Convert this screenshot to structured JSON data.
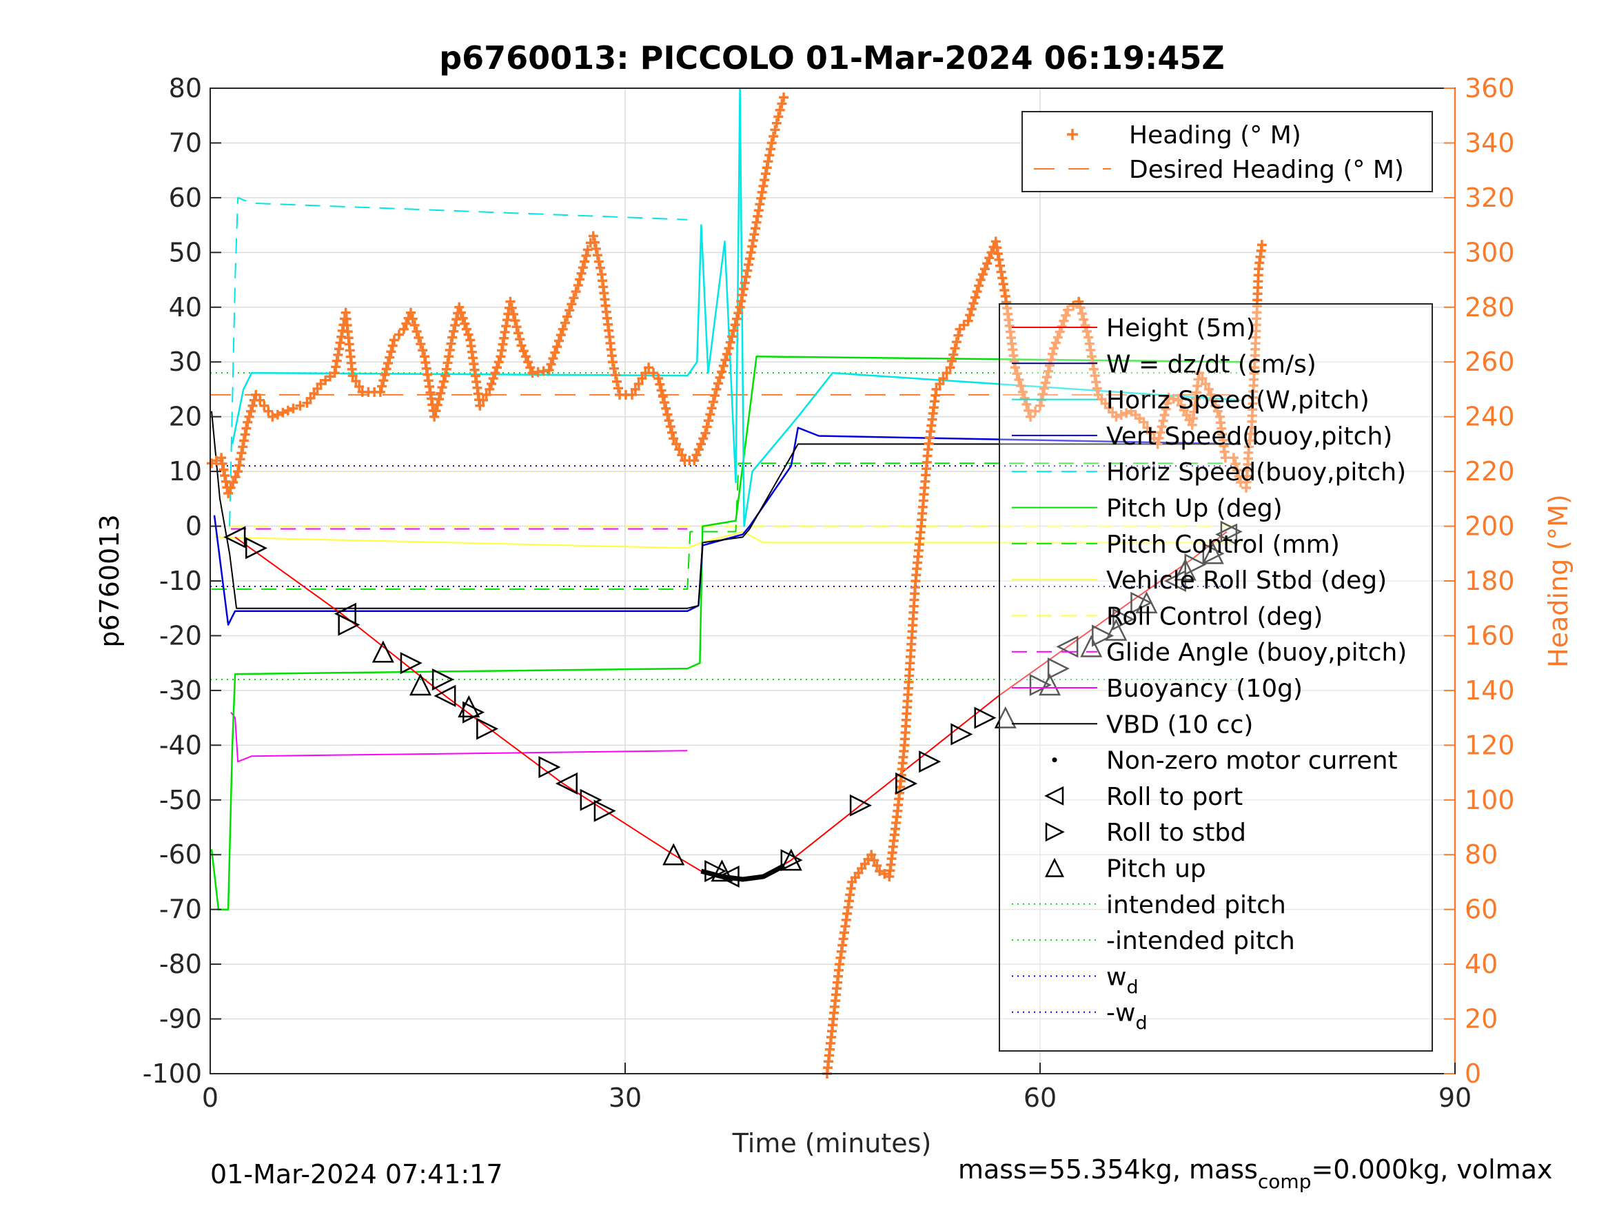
{
  "chart_data": {
    "type": "line",
    "title": "p6760013: PICCOLO 01-Mar-2024 06:19:45Z",
    "xlabel": "Time (minutes)",
    "ylabel": "p6760013",
    "y2label": "Heading (°M)",
    "xlim": [
      0,
      90
    ],
    "ylim": [
      -100,
      80
    ],
    "y2lim": [
      0,
      360
    ],
    "xticks": [
      "0",
      "30",
      "60",
      "90"
    ],
    "yticks": [
      "80",
      "70",
      "60",
      "50",
      "40",
      "30",
      "20",
      "10",
      "0",
      "-10",
      "-20",
      "-30",
      "-40",
      "-50",
      "-60",
      "-70",
      "-80",
      "-90",
      "-100"
    ],
    "y2ticks": [
      "360",
      "340",
      "320",
      "300",
      "280",
      "260",
      "240",
      "220",
      "200",
      "180",
      "160",
      "140",
      "120",
      "100",
      "80",
      "60",
      "40",
      "20",
      "0"
    ],
    "grid": true,
    "colors": {
      "heading": "#f97a2a",
      "height": "#ff0000",
      "w": "#000080",
      "horiz_speed_w": "#00e5e5",
      "vert_speed": "#0000dd",
      "pitch": "#00e000",
      "roll": "#ffff33",
      "glide": "#ff00ff",
      "buoyancy": "#ff00ff",
      "vbd": "#000000",
      "wd": "#0000ff"
    },
    "legend_heading": [
      {
        "label": "Heading (° M)",
        "style": "plus"
      },
      {
        "label": "Desired Heading (° M)",
        "style": "dash"
      }
    ],
    "legend_main": [
      {
        "label": "Height (5m)",
        "style": "line",
        "color": "#ff0000"
      },
      {
        "label": "W = dz/dt (cm/s)",
        "style": "line",
        "color": "#000080"
      },
      {
        "label": "Horiz Speed(W,pitch)",
        "style": "line",
        "color": "#00e5e5"
      },
      {
        "label": "Vert Speed(buoy,pitch)",
        "style": "line",
        "color": "#0000dd"
      },
      {
        "label": "Horiz Speed(buoy,pitch)",
        "style": "dash",
        "color": "#00e5e5"
      },
      {
        "label": "Pitch Up (deg)",
        "style": "line",
        "color": "#00e000"
      },
      {
        "label": "Pitch Control (mm)",
        "style": "dash",
        "color": "#00e000"
      },
      {
        "label": "Vehicle Roll Stbd (deg)",
        "style": "line",
        "color": "#ffff33"
      },
      {
        "label": "Roll Control (deg)",
        "style": "dash",
        "color": "#ffff33"
      },
      {
        "label": "Glide Angle (buoy,pitch)",
        "style": "dash",
        "color": "#ff00ff"
      },
      {
        "label": "Buoyancy (10g)",
        "style": "line",
        "color": "#ff00ff"
      },
      {
        "label": "VBD (10 cc)",
        "style": "line",
        "color": "#000000"
      },
      {
        "label": "Non-zero motor current",
        "style": "dot",
        "color": "#000000"
      },
      {
        "label": "Roll to port",
        "style": "tri-left",
        "color": "#000000"
      },
      {
        "label": "Roll to stbd",
        "style": "tri-right",
        "color": "#000000"
      },
      {
        "label": "Pitch up",
        "style": "tri-up",
        "color": "#000000"
      },
      {
        "label": "intended pitch",
        "style": "dot-line",
        "color": "#00e000"
      },
      {
        "label": "-intended pitch",
        "style": "dot-line",
        "color": "#00e000"
      },
      {
        "label": "w",
        "sub": "d",
        "style": "dot-line",
        "color": "#0000ff"
      },
      {
        "label": "-w",
        "sub": "d",
        "style": "dot-line",
        "color": "#0000ff"
      }
    ],
    "footer_left": "01-Mar-2024 07:41:17",
    "footer_right_parts": [
      "mass=55.354kg, mass",
      "comp",
      "=0.000kg, volmax"
    ],
    "reference_lines": {
      "intended_pitch": 28,
      "neg_intended_pitch": -28,
      "wd": 11,
      "neg_wd": -11,
      "desired_heading": 248
    },
    "series": {
      "height": [
        [
          1.8,
          -2
        ],
        [
          9.5,
          -16
        ],
        [
          17,
          -31
        ],
        [
          25.5,
          -47
        ],
        [
          33.5,
          -60
        ],
        [
          35.5,
          -63
        ],
        [
          37,
          -64
        ],
        [
          38.5,
          -64.5
        ],
        [
          40,
          -64
        ],
        [
          42,
          -61
        ],
        [
          47,
          -51
        ],
        [
          52,
          -41
        ],
        [
          57,
          -31
        ],
        [
          62,
          -22
        ],
        [
          67,
          -13
        ],
        [
          71,
          -6
        ],
        [
          73.5,
          -1
        ]
      ],
      "vbd": [
        [
          0.1,
          21
        ],
        [
          0.7,
          5
        ],
        [
          1.4,
          -5
        ],
        [
          1.9,
          -15
        ],
        [
          34.5,
          -15
        ],
        [
          35.3,
          -14.5
        ],
        [
          35.6,
          -3
        ],
        [
          38.5,
          -2
        ],
        [
          39,
          -0.5
        ],
        [
          42.5,
          15
        ],
        [
          74.5,
          15
        ]
      ],
      "vert_speed": [
        [
          0.3,
          2
        ],
        [
          1.3,
          -18
        ],
        [
          1.8,
          -15.5
        ],
        [
          34.5,
          -15.5
        ],
        [
          35.3,
          -14.5
        ],
        [
          35.6,
          -3.5
        ],
        [
          38.5,
          -1.5
        ],
        [
          39,
          0
        ],
        [
          42,
          11
        ],
        [
          42.5,
          18
        ],
        [
          44,
          16.5
        ],
        [
          74.5,
          15
        ]
      ],
      "horiz_speed_w": [
        [
          1.6,
          15
        ],
        [
          2.4,
          25
        ],
        [
          3.0,
          28
        ],
        [
          34.5,
          27.5
        ],
        [
          35.2,
          30
        ],
        [
          35.5,
          55
        ],
        [
          36.0,
          28
        ],
        [
          37.2,
          52
        ],
        [
          38.0,
          8
        ],
        [
          38.3,
          80
        ],
        [
          38.6,
          0
        ],
        [
          39.2,
          10
        ],
        [
          42.5,
          20
        ],
        [
          45,
          28
        ],
        [
          74.5,
          23
        ]
      ],
      "horiz_speed_buoy": [
        [
          1.4,
          0
        ],
        [
          1.8,
          45
        ],
        [
          2.0,
          60
        ],
        [
          3,
          59
        ],
        [
          34.5,
          56
        ]
      ],
      "pitch_up": [
        [
          0.1,
          -59
        ],
        [
          0.6,
          -70
        ],
        [
          1.3,
          -70
        ],
        [
          1.6,
          -40
        ],
        [
          1.8,
          -27
        ],
        [
          34.5,
          -26
        ],
        [
          35.4,
          -25
        ],
        [
          35.6,
          0
        ],
        [
          38.0,
          1
        ],
        [
          39.5,
          31
        ],
        [
          74.5,
          30
        ]
      ],
      "pitch_control": [
        [
          0.1,
          -11.5
        ],
        [
          34.5,
          -11.5
        ],
        [
          34.7,
          -1
        ],
        [
          38.0,
          -1
        ],
        [
          38.2,
          11.5
        ],
        [
          74.5,
          11.5
        ]
      ],
      "vehicle_roll": [
        [
          0.3,
          -2
        ],
        [
          34.5,
          -4
        ],
        [
          35.5,
          -3
        ],
        [
          38.5,
          -1
        ],
        [
          40,
          -3
        ],
        [
          74.5,
          -3
        ]
      ],
      "roll_control": [
        [
          1.3,
          0
        ],
        [
          34.5,
          0
        ],
        [
          37,
          0
        ],
        [
          74.5,
          0
        ]
      ],
      "glide_angle": [
        [
          1.5,
          -0.5
        ],
        [
          34.5,
          -0.5
        ]
      ],
      "buoyancy": [
        [
          1.5,
          -34
        ],
        [
          1.8,
          -35
        ],
        [
          2.0,
          -43
        ],
        [
          3,
          -42
        ],
        [
          34.5,
          -41
        ]
      ],
      "heading": [
        [
          0.1,
          223
        ],
        [
          0.8,
          225
        ],
        [
          1.3,
          212
        ],
        [
          2.0,
          220
        ],
        [
          2.7,
          238
        ],
        [
          3.3,
          248
        ],
        [
          4.5,
          240
        ],
        [
          6,
          243
        ],
        [
          7,
          245
        ],
        [
          8,
          252
        ],
        [
          9,
          256
        ],
        [
          9.8,
          278
        ],
        [
          10.3,
          255
        ],
        [
          11,
          249
        ],
        [
          12.3,
          249
        ],
        [
          13.3,
          268
        ],
        [
          14,
          272
        ],
        [
          14.5,
          278
        ],
        [
          15.5,
          262
        ],
        [
          16.2,
          240
        ],
        [
          17,
          255
        ],
        [
          17.5,
          269
        ],
        [
          18,
          280
        ],
        [
          18.8,
          268
        ],
        [
          19.5,
          244
        ],
        [
          20.2,
          250
        ],
        [
          21,
          262
        ],
        [
          21.7,
          282
        ],
        [
          22.5,
          266
        ],
        [
          23.3,
          256
        ],
        [
          24.5,
          257
        ],
        [
          25.5,
          272
        ],
        [
          26.6,
          288
        ],
        [
          27.3,
          301
        ],
        [
          27.7,
          306
        ],
        [
          28.3,
          292
        ],
        [
          29.1,
          260
        ],
        [
          29.6,
          248
        ],
        [
          30.5,
          248
        ],
        [
          31.7,
          258
        ],
        [
          32.4,
          254
        ],
        [
          33.5,
          232
        ],
        [
          34.3,
          224
        ],
        [
          35,
          224
        ],
        [
          35.8,
          234
        ],
        [
          36.6,
          250
        ],
        [
          37.5,
          265
        ],
        [
          38.3,
          280
        ],
        [
          39.1,
          300
        ],
        [
          39.9,
          322
        ],
        [
          40.6,
          340
        ],
        [
          41.2,
          352
        ],
        [
          41.6,
          359
        ]
      ],
      "heading_2": [
        [
          44.6,
          0
        ],
        [
          45.5,
          40
        ],
        [
          46.4,
          70
        ],
        [
          47.1,
          75
        ],
        [
          47.8,
          80
        ],
        [
          48.4,
          74
        ],
        [
          49.1,
          72
        ],
        [
          49.7,
          96
        ],
        [
          50.2,
          120
        ],
        [
          50.6,
          150
        ],
        [
          51.0,
          180
        ],
        [
          51.4,
          200
        ],
        [
          51.9,
          228
        ],
        [
          52.5,
          250
        ],
        [
          53.5,
          258
        ],
        [
          54.2,
          272
        ],
        [
          54.8,
          275
        ],
        [
          55.7,
          290
        ],
        [
          56.8,
          304
        ],
        [
          57.5,
          284
        ],
        [
          58.2,
          258
        ],
        [
          59.3,
          240
        ],
        [
          60,
          244
        ],
        [
          61,
          265
        ],
        [
          62,
          279
        ],
        [
          62.8,
          282
        ],
        [
          63.5,
          269
        ],
        [
          64.2,
          248
        ],
        [
          65.5,
          240
        ],
        [
          66.6,
          242
        ],
        [
          67.5,
          238
        ],
        [
          68.5,
          230
        ],
        [
          69.3,
          247
        ],
        [
          70,
          246
        ],
        [
          71,
          237
        ],
        [
          71.5,
          256
        ],
        [
          72.2,
          250
        ],
        [
          73,
          240
        ],
        [
          73.4,
          225
        ],
        [
          74,
          225
        ],
        [
          74.5,
          216
        ],
        [
          74.9,
          214
        ],
        [
          75.1,
          229
        ],
        [
          75.3,
          236
        ],
        [
          75.6,
          269
        ],
        [
          75.8,
          294
        ],
        [
          76.1,
          305
        ]
      ],
      "roll_to_port": [
        [
          1.8,
          -2
        ],
        [
          9.8,
          -16
        ],
        [
          17,
          -31
        ],
        [
          25.8,
          -47
        ],
        [
          37.5,
          -64
        ],
        [
          62,
          -22
        ],
        [
          69.8,
          -10
        ],
        [
          73.5,
          -1.5
        ]
      ],
      "roll_to_stbd": [
        [
          3.3,
          -4
        ],
        [
          10.0,
          -18
        ],
        [
          14.5,
          -25
        ],
        [
          16.8,
          -28
        ],
        [
          19.0,
          -34
        ],
        [
          20.0,
          -37
        ],
        [
          24.5,
          -44
        ],
        [
          27.5,
          -50
        ],
        [
          28.5,
          -52
        ],
        [
          36.5,
          -63
        ],
        [
          42.0,
          -61
        ],
        [
          47.0,
          -51
        ],
        [
          50.3,
          -47
        ],
        [
          52.0,
          -43
        ],
        [
          54.3,
          -38
        ],
        [
          56.0,
          -35
        ],
        [
          60.0,
          -29
        ],
        [
          61.3,
          -26
        ],
        [
          64.5,
          -20
        ],
        [
          66.0,
          -17
        ],
        [
          67.3,
          -14
        ],
        [
          71.2,
          -7
        ],
        [
          72.5,
          -5
        ],
        [
          73.8,
          -1
        ]
      ],
      "pitch_up_marks": [
        [
          12.5,
          -23
        ],
        [
          15.2,
          -29
        ],
        [
          18.7,
          -33
        ],
        [
          33.5,
          -60
        ],
        [
          37.0,
          -63
        ],
        [
          42.0,
          -61
        ],
        [
          57.5,
          -35
        ],
        [
          60.7,
          -29
        ],
        [
          63.7,
          -22
        ],
        [
          65.5,
          -19
        ],
        [
          67.7,
          -14
        ],
        [
          70.5,
          -8
        ],
        [
          72.5,
          -5
        ]
      ]
    }
  }
}
